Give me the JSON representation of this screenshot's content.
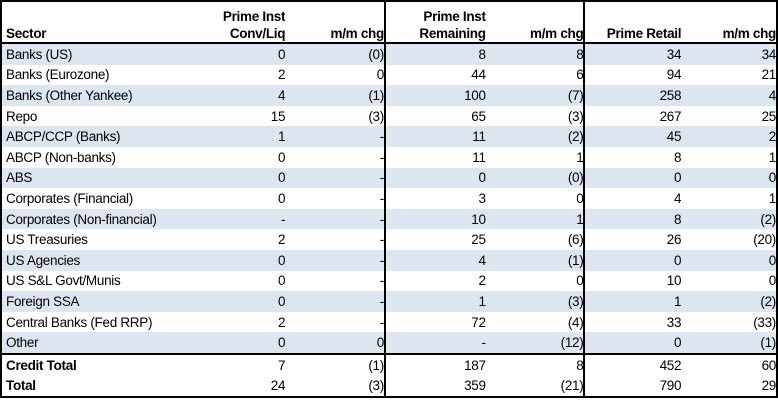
{
  "colors": {
    "stripe_row": "#dce6f1",
    "border": "#000000",
    "background": "#ffffff",
    "text": "#000000"
  },
  "header": {
    "sector": "Sector",
    "group1_line1": "Prime Inst",
    "group1_line2": "Conv/Liq",
    "group1_chg": "m/m chg",
    "group2_line1": "Prime Inst",
    "group2_line2": "Remaining",
    "group2_chg": "m/m chg",
    "group3_label": "Prime Retail",
    "group3_chg": "m/m chg"
  },
  "chart_data": {
    "type": "table",
    "columns": [
      "Sector",
      "Prime Inst Conv/Liq",
      "m/m chg",
      "Prime Inst Remaining",
      "m/m chg",
      "Prime Retail",
      "m/m chg"
    ],
    "negative_format": "parentheses",
    "rows": [
      {
        "sector": "Banks (US)",
        "values": [
          "0",
          "(0)",
          "8",
          "8",
          "34",
          "34"
        ]
      },
      {
        "sector": "Banks (Eurozone)",
        "values": [
          "2",
          "0",
          "44",
          "6",
          "94",
          "21"
        ]
      },
      {
        "sector": "Banks (Other Yankee)",
        "values": [
          "4",
          "(1)",
          "100",
          "(7)",
          "258",
          "4"
        ]
      },
      {
        "sector": "Repo",
        "values": [
          "15",
          "(3)",
          "65",
          "(3)",
          "267",
          "25"
        ]
      },
      {
        "sector": "ABCP/CCP (Banks)",
        "values": [
          "1",
          "-",
          "11",
          "(2)",
          "45",
          "2"
        ]
      },
      {
        "sector": "ABCP (Non-banks)",
        "values": [
          "0",
          "-",
          "11",
          "1",
          "8",
          "1"
        ]
      },
      {
        "sector": "ABS",
        "values": [
          "0",
          "-",
          "0",
          "(0)",
          "0",
          "0"
        ]
      },
      {
        "sector": "Corporates (Financial)",
        "values": [
          "0",
          "-",
          "3",
          "0",
          "4",
          "1"
        ]
      },
      {
        "sector": "Corporates (Non-financial)",
        "values": [
          "-",
          "-",
          "10",
          "1",
          "8",
          "(2)"
        ]
      },
      {
        "sector": "US Treasuries",
        "values": [
          "2",
          "-",
          "25",
          "(6)",
          "26",
          "(20)"
        ]
      },
      {
        "sector": "US Agencies",
        "values": [
          "0",
          "-",
          "4",
          "(1)",
          "0",
          "0"
        ]
      },
      {
        "sector": "US S&L Govt/Munis",
        "values": [
          "0",
          "-",
          "2",
          "0",
          "10",
          "0"
        ]
      },
      {
        "sector": "Foreign SSA",
        "values": [
          "0",
          "-",
          "1",
          "(3)",
          "1",
          "(2)"
        ]
      },
      {
        "sector": "Central Banks (Fed RRP)",
        "values": [
          "2",
          "-",
          "72",
          "(4)",
          "33",
          "(33)"
        ]
      },
      {
        "sector": "Other",
        "values": [
          "0",
          "0",
          "-",
          "(12)",
          "0",
          "(1)"
        ]
      }
    ],
    "total_rows": [
      {
        "sector": "Credit Total",
        "values": [
          "7",
          "(1)",
          "187",
          "8",
          "452",
          "60"
        ]
      },
      {
        "sector": "Total",
        "values": [
          "24",
          "(3)",
          "359",
          "(21)",
          "790",
          "29"
        ]
      }
    ]
  }
}
